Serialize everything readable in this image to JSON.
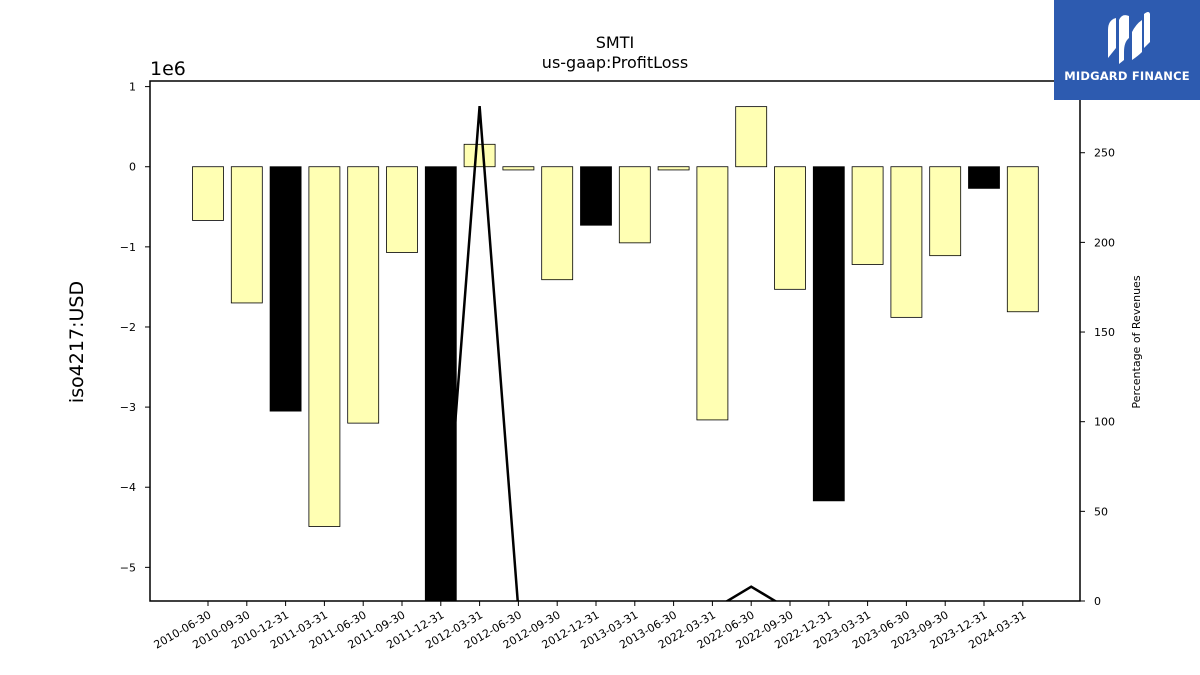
{
  "chart_data": {
    "type": "bar",
    "title": "SMTI",
    "subtitle": "us-gaap:ProfitLoss",
    "ylabel": "iso4217:USD",
    "ylabel_right": "Percentage of Revenues",
    "y_exponent_label": "1e6",
    "ylim": [
      -5.42,
      1.07
    ],
    "ylim_right": [
      0,
      290
    ],
    "yticks": [
      1,
      0,
      -1,
      -2,
      -3,
      -4,
      -5
    ],
    "yticks_right": [
      0,
      50,
      100,
      150,
      200,
      250
    ],
    "categories": [
      "2010-06-30",
      "2010-09-30",
      "2010-12-31",
      "2011-03-31",
      "2011-06-30",
      "2011-09-30",
      "2011-12-31",
      "2012-03-31",
      "2012-06-30",
      "2012-09-30",
      "2012-12-31",
      "2013-03-31",
      "2013-06-30",
      "2022-03-31",
      "2022-06-30",
      "2022-09-30",
      "2022-12-31",
      "2023-03-31",
      "2023-06-30",
      "2023-09-30",
      "2023-12-31",
      "2024-03-31"
    ],
    "values": [
      -0.67,
      -1.7,
      -3.05,
      -4.49,
      -3.2,
      -1.07,
      -5.42,
      0.28,
      -0.04,
      -1.41,
      -0.73,
      -0.95,
      -0.04,
      -3.16,
      0.75,
      -1.53,
      -4.17,
      -1.22,
      -1.88,
      -1.11,
      -0.27,
      -1.81
    ],
    "bar_colors": [
      "#ffffb3",
      "#ffffb3",
      "#000000",
      "#ffffb3",
      "#ffffb3",
      "#ffffb3",
      "#000000",
      "#ffffb3",
      "#ffffb3",
      "#ffffb3",
      "#000000",
      "#ffffb3",
      "#ffffb3",
      "#ffffb3",
      "#ffffb3",
      "#ffffb3",
      "#000000",
      "#ffffb3",
      "#ffffb3",
      "#ffffb3",
      "#000000",
      "#ffffb3"
    ],
    "line_series": {
      "points": [
        {
          "category": "2011-12-31",
          "value": -5
        },
        {
          "category": "2012-03-31",
          "value": 276
        },
        {
          "category": "2012-06-30",
          "value": -5
        },
        {
          "category": "2022-03-31",
          "value": -5
        },
        {
          "category": "2022-06-30",
          "value": 8
        },
        {
          "category": "2022-09-30",
          "value": -5
        }
      ],
      "color": "#000000"
    },
    "grid": false
  },
  "logo": {
    "text": "MIDGARD FINANCE",
    "background": "#2d5bb0"
  }
}
